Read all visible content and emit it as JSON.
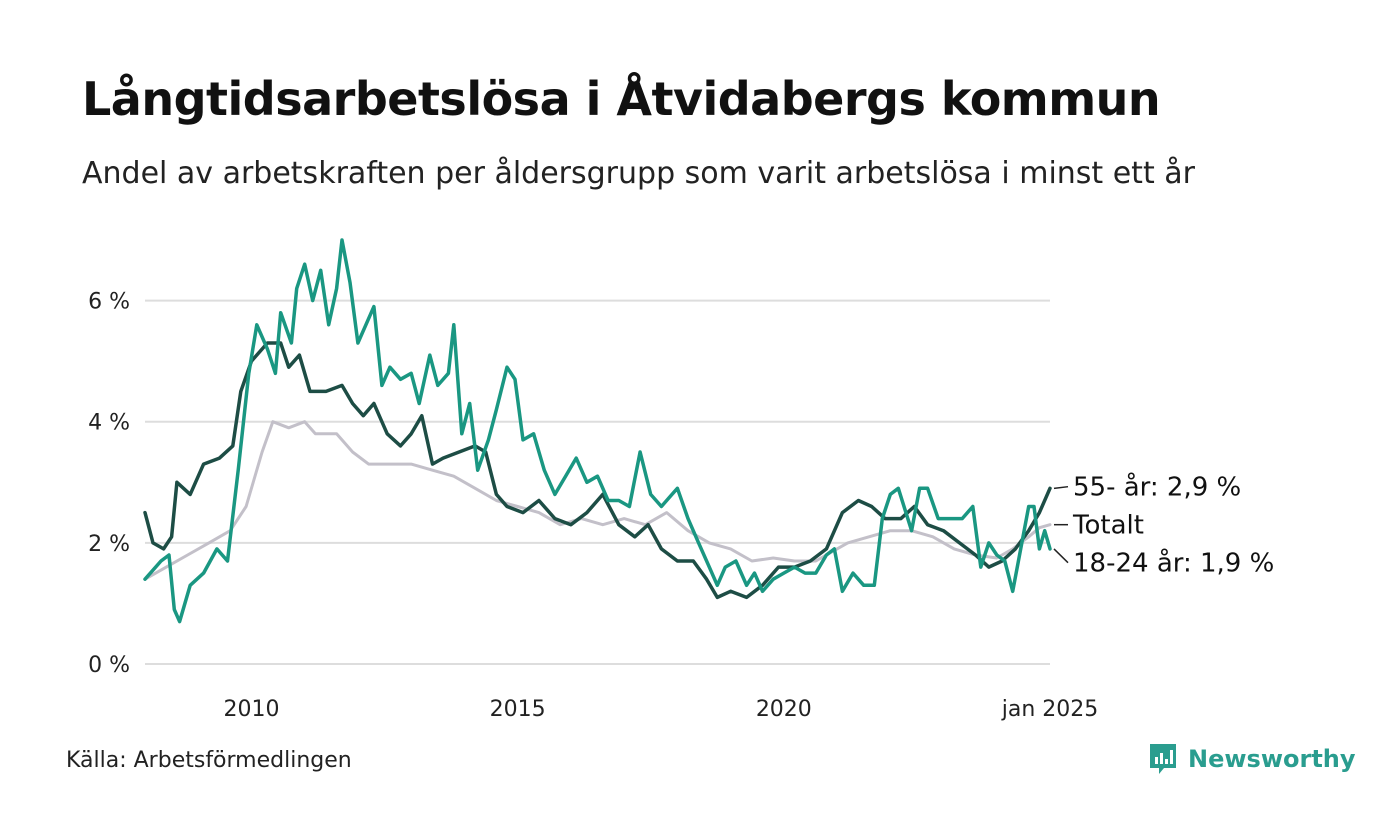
{
  "title": "Långtidsarbetslösa i Åtvidabergs kommun",
  "subtitle": "Andel av arbetskraften per åldersgrupp som varit arbetslösa i minst ett år",
  "source": "Källa: Arbetsförmedlingen",
  "brand": "Newsworthy",
  "colors": {
    "young": "#1a9782",
    "old": "#1d4d45",
    "total": "#c3c0c9",
    "grid": "#dddddd",
    "brand": "#2a9d8f"
  },
  "chart_data": {
    "type": "line",
    "x_range": [
      2008.0,
      2025.0
    ],
    "ylim": [
      0,
      7
    ],
    "yticks": [
      0,
      2,
      4,
      6
    ],
    "ytick_labels": [
      "0 %",
      "2 %",
      "4 %",
      "6 %"
    ],
    "xticks": [
      2010,
      2015,
      2020,
      2025
    ],
    "xtick_labels": [
      "2010",
      "2015",
      "2020",
      "jan 2025"
    ],
    "series": [
      {
        "id": "total",
        "name": "Totalt",
        "label": "Totalt",
        "points": [
          [
            2008.0,
            1.4
          ],
          [
            2008.4,
            1.6
          ],
          [
            2008.8,
            1.8
          ],
          [
            2009.2,
            2.0
          ],
          [
            2009.6,
            2.2
          ],
          [
            2009.9,
            2.6
          ],
          [
            2010.2,
            3.5
          ],
          [
            2010.4,
            4.0
          ],
          [
            2010.7,
            3.9
          ],
          [
            2011.0,
            4.0
          ],
          [
            2011.2,
            3.8
          ],
          [
            2011.6,
            3.8
          ],
          [
            2011.9,
            3.5
          ],
          [
            2012.2,
            3.3
          ],
          [
            2012.6,
            3.3
          ],
          [
            2013.0,
            3.3
          ],
          [
            2013.4,
            3.2
          ],
          [
            2013.8,
            3.1
          ],
          [
            2014.2,
            2.9
          ],
          [
            2014.6,
            2.7
          ],
          [
            2015.0,
            2.6
          ],
          [
            2015.4,
            2.5
          ],
          [
            2015.8,
            2.3
          ],
          [
            2016.2,
            2.4
          ],
          [
            2016.6,
            2.3
          ],
          [
            2017.0,
            2.4
          ],
          [
            2017.4,
            2.3
          ],
          [
            2017.8,
            2.5
          ],
          [
            2018.2,
            2.2
          ],
          [
            2018.6,
            2.0
          ],
          [
            2019.0,
            1.9
          ],
          [
            2019.4,
            1.7
          ],
          [
            2019.8,
            1.75
          ],
          [
            2020.2,
            1.7
          ],
          [
            2020.6,
            1.7
          ],
          [
            2020.9,
            1.85
          ],
          [
            2021.2,
            2.0
          ],
          [
            2021.6,
            2.1
          ],
          [
            2022.0,
            2.2
          ],
          [
            2022.4,
            2.2
          ],
          [
            2022.8,
            2.1
          ],
          [
            2023.2,
            1.9
          ],
          [
            2023.6,
            1.8
          ],
          [
            2024.0,
            1.75
          ],
          [
            2024.3,
            1.9
          ],
          [
            2024.6,
            2.1
          ],
          [
            2024.8,
            2.25
          ],
          [
            2025.0,
            2.3
          ]
        ]
      },
      {
        "id": "old",
        "name": "55- år",
        "label": "55- år: 2,9 %",
        "points": [
          [
            2008.0,
            2.5
          ],
          [
            2008.15,
            2.0
          ],
          [
            2008.35,
            1.9
          ],
          [
            2008.5,
            2.1
          ],
          [
            2008.6,
            3.0
          ],
          [
            2008.85,
            2.8
          ],
          [
            2009.1,
            3.3
          ],
          [
            2009.4,
            3.4
          ],
          [
            2009.65,
            3.6
          ],
          [
            2009.8,
            4.5
          ],
          [
            2010.0,
            5.0
          ],
          [
            2010.3,
            5.3
          ],
          [
            2010.55,
            5.3
          ],
          [
            2010.7,
            4.9
          ],
          [
            2010.9,
            5.1
          ],
          [
            2011.1,
            4.5
          ],
          [
            2011.4,
            4.5
          ],
          [
            2011.7,
            4.6
          ],
          [
            2011.9,
            4.3
          ],
          [
            2012.1,
            4.1
          ],
          [
            2012.3,
            4.3
          ],
          [
            2012.55,
            3.8
          ],
          [
            2012.8,
            3.6
          ],
          [
            2013.0,
            3.8
          ],
          [
            2013.2,
            4.1
          ],
          [
            2013.4,
            3.3
          ],
          [
            2013.6,
            3.4
          ],
          [
            2013.9,
            3.5
          ],
          [
            2014.2,
            3.6
          ],
          [
            2014.4,
            3.5
          ],
          [
            2014.6,
            2.8
          ],
          [
            2014.8,
            2.6
          ],
          [
            2015.1,
            2.5
          ],
          [
            2015.4,
            2.7
          ],
          [
            2015.7,
            2.4
          ],
          [
            2016.0,
            2.3
          ],
          [
            2016.3,
            2.5
          ],
          [
            2016.6,
            2.8
          ],
          [
            2016.9,
            2.3
          ],
          [
            2017.2,
            2.1
          ],
          [
            2017.45,
            2.3
          ],
          [
            2017.7,
            1.9
          ],
          [
            2018.0,
            1.7
          ],
          [
            2018.3,
            1.7
          ],
          [
            2018.55,
            1.4
          ],
          [
            2018.75,
            1.1
          ],
          [
            2019.0,
            1.2
          ],
          [
            2019.3,
            1.1
          ],
          [
            2019.6,
            1.3
          ],
          [
            2019.9,
            1.6
          ],
          [
            2020.2,
            1.6
          ],
          [
            2020.5,
            1.7
          ],
          [
            2020.8,
            1.9
          ],
          [
            2021.1,
            2.5
          ],
          [
            2021.4,
            2.7
          ],
          [
            2021.65,
            2.6
          ],
          [
            2021.9,
            2.4
          ],
          [
            2022.2,
            2.4
          ],
          [
            2022.45,
            2.6
          ],
          [
            2022.7,
            2.3
          ],
          [
            2023.0,
            2.2
          ],
          [
            2023.3,
            2.0
          ],
          [
            2023.6,
            1.8
          ],
          [
            2023.85,
            1.6
          ],
          [
            2024.1,
            1.7
          ],
          [
            2024.35,
            1.9
          ],
          [
            2024.6,
            2.2
          ],
          [
            2024.8,
            2.5
          ],
          [
            2025.0,
            2.9
          ]
        ]
      },
      {
        "id": "young",
        "name": "18-24 år",
        "label": "18-24 år: 1,9 %",
        "points": [
          [
            2008.0,
            1.4
          ],
          [
            2008.3,
            1.7
          ],
          [
            2008.45,
            1.8
          ],
          [
            2008.55,
            0.9
          ],
          [
            2008.65,
            0.7
          ],
          [
            2008.85,
            1.3
          ],
          [
            2009.1,
            1.5
          ],
          [
            2009.35,
            1.9
          ],
          [
            2009.55,
            1.7
          ],
          [
            2009.75,
            3.2
          ],
          [
            2009.95,
            4.8
          ],
          [
            2010.1,
            5.6
          ],
          [
            2010.3,
            5.2
          ],
          [
            2010.45,
            4.8
          ],
          [
            2010.55,
            5.8
          ],
          [
            2010.75,
            5.3
          ],
          [
            2010.85,
            6.2
          ],
          [
            2011.0,
            6.6
          ],
          [
            2011.15,
            6.0
          ],
          [
            2011.3,
            6.5
          ],
          [
            2011.45,
            5.6
          ],
          [
            2011.6,
            6.2
          ],
          [
            2011.7,
            7.0
          ],
          [
            2011.85,
            6.3
          ],
          [
            2012.0,
            5.3
          ],
          [
            2012.15,
            5.6
          ],
          [
            2012.3,
            5.9
          ],
          [
            2012.45,
            4.6
          ],
          [
            2012.6,
            4.9
          ],
          [
            2012.8,
            4.7
          ],
          [
            2013.0,
            4.8
          ],
          [
            2013.15,
            4.3
          ],
          [
            2013.35,
            5.1
          ],
          [
            2013.5,
            4.6
          ],
          [
            2013.7,
            4.8
          ],
          [
            2013.8,
            5.6
          ],
          [
            2013.95,
            3.8
          ],
          [
            2014.1,
            4.3
          ],
          [
            2014.25,
            3.2
          ],
          [
            2014.45,
            3.7
          ],
          [
            2014.6,
            4.2
          ],
          [
            2014.8,
            4.9
          ],
          [
            2014.95,
            4.7
          ],
          [
            2015.1,
            3.7
          ],
          [
            2015.3,
            3.8
          ],
          [
            2015.5,
            3.2
          ],
          [
            2015.7,
            2.8
          ],
          [
            2015.9,
            3.1
          ],
          [
            2016.1,
            3.4
          ],
          [
            2016.3,
            3.0
          ],
          [
            2016.5,
            3.1
          ],
          [
            2016.7,
            2.7
          ],
          [
            2016.9,
            2.7
          ],
          [
            2017.1,
            2.6
          ],
          [
            2017.3,
            3.5
          ],
          [
            2017.5,
            2.8
          ],
          [
            2017.7,
            2.6
          ],
          [
            2017.9,
            2.8
          ],
          [
            2018.0,
            2.9
          ],
          [
            2018.2,
            2.4
          ],
          [
            2018.4,
            2.0
          ],
          [
            2018.6,
            1.6
          ],
          [
            2018.75,
            1.3
          ],
          [
            2018.9,
            1.6
          ],
          [
            2019.1,
            1.7
          ],
          [
            2019.3,
            1.3
          ],
          [
            2019.45,
            1.5
          ],
          [
            2019.6,
            1.2
          ],
          [
            2019.8,
            1.4
          ],
          [
            2020.0,
            1.5
          ],
          [
            2020.2,
            1.6
          ],
          [
            2020.4,
            1.5
          ],
          [
            2020.6,
            1.5
          ],
          [
            2020.8,
            1.8
          ],
          [
            2020.95,
            1.9
          ],
          [
            2021.1,
            1.2
          ],
          [
            2021.3,
            1.5
          ],
          [
            2021.5,
            1.3
          ],
          [
            2021.7,
            1.3
          ],
          [
            2021.85,
            2.4
          ],
          [
            2022.0,
            2.8
          ],
          [
            2022.15,
            2.9
          ],
          [
            2022.4,
            2.2
          ],
          [
            2022.55,
            2.9
          ],
          [
            2022.7,
            2.9
          ],
          [
            2022.9,
            2.4
          ],
          [
            2023.1,
            2.4
          ],
          [
            2023.35,
            2.4
          ],
          [
            2023.55,
            2.6
          ],
          [
            2023.7,
            1.6
          ],
          [
            2023.85,
            2.0
          ],
          [
            2024.0,
            1.8
          ],
          [
            2024.15,
            1.7
          ],
          [
            2024.3,
            1.2
          ],
          [
            2024.45,
            1.9
          ],
          [
            2024.6,
            2.6
          ],
          [
            2024.7,
            2.6
          ],
          [
            2024.8,
            1.9
          ],
          [
            2024.9,
            2.2
          ],
          [
            2025.0,
            1.9
          ]
        ]
      }
    ]
  }
}
